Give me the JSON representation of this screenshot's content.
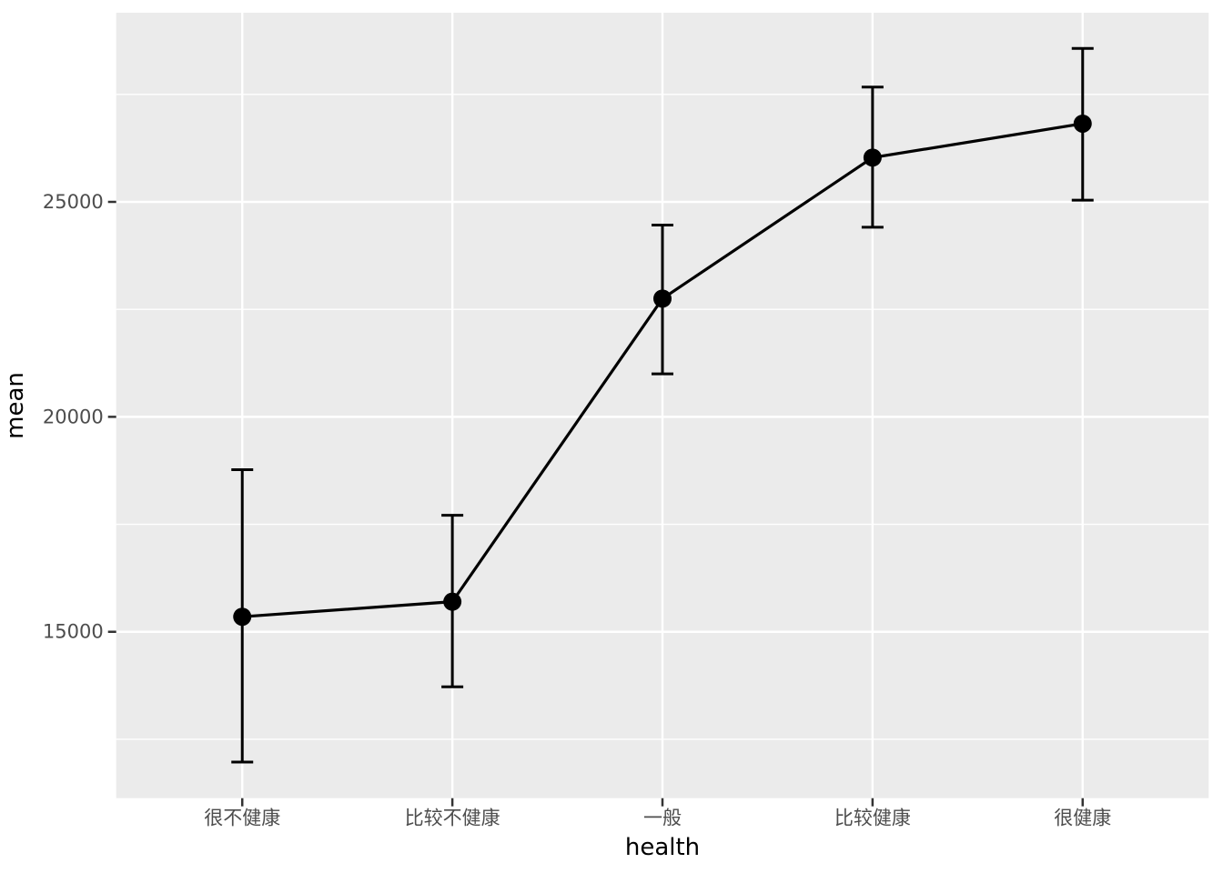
{
  "chart_data": {
    "type": "line",
    "title": "",
    "xlabel": "health",
    "ylabel": "mean",
    "categories": [
      "很不健康",
      "比较不健康",
      "一般",
      "比较健康",
      "很健康"
    ],
    "series": [
      {
        "name": "mean",
        "values": [
          15350,
          15700,
          22750,
          26030,
          26820
        ],
        "error_lower": [
          11970,
          13720,
          21000,
          24410,
          25040
        ],
        "error_upper": [
          18770,
          17710,
          24460,
          27670,
          28570
        ]
      }
    ],
    "points": [
      {
        "category": "很不健康",
        "mean": 15350,
        "lower": 11970,
        "upper": 18770
      },
      {
        "category": "比较不健康",
        "mean": 15700,
        "lower": 13720,
        "upper": 17710
      },
      {
        "category": "一般",
        "mean": 22750,
        "lower": 21000,
        "upper": 24460
      },
      {
        "category": "比较健康",
        "mean": 26030,
        "lower": 24410,
        "upper": 27670
      },
      {
        "category": "很健康",
        "mean": 26820,
        "lower": 25040,
        "upper": 28570
      }
    ],
    "yticks": [
      15000,
      20000,
      25000
    ],
    "ytick_labels": [
      "15000",
      "20000",
      "25000"
    ],
    "minor_yticks": [
      12500,
      17500,
      22500,
      27500
    ],
    "ylim": [
      11130,
      29400
    ],
    "grid": "on",
    "legend": "none",
    "marker": "filled-circle",
    "colors": {
      "panel_background": "#EBEBEB",
      "gridline": "#FFFFFF",
      "series": "#000000",
      "tick_text": "#4D4D4D",
      "axis_title_text": "#000000",
      "tick_mark": "#333333"
    }
  }
}
